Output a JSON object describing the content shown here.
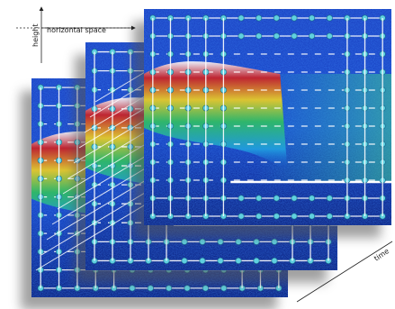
{
  "labels": {
    "height": "height",
    "horizontal_space": "horizontal space",
    "time": "time"
  }
}
